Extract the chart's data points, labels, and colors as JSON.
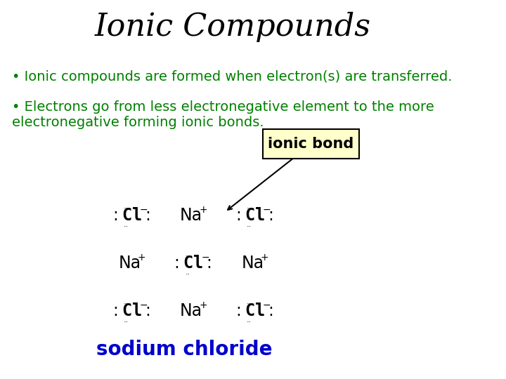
{
  "title": "Ionic Compounds",
  "title_color": "#000000",
  "title_fontsize": 32,
  "title_fontstyle": "italic",
  "bg_color": "#ffffff",
  "bullet1": "• Ionic compounds are formed when electron(s) are transferred.",
  "bullet2": "• Electrons go from less electronegative element to the more electronegative forming ionic bonds.",
  "bullet_color": "#008000",
  "bullet_fontsize": 14,
  "label_ionic_bond": "ionic bond",
  "label_ionic_bond_box_color": "#ffffcc",
  "label_ionic_bond_box_edge": "#000000",
  "sodium_chloride_label": "sodium chloride",
  "sodium_chloride_color": "#0000cc",
  "sodium_chloride_fontsize": 20
}
